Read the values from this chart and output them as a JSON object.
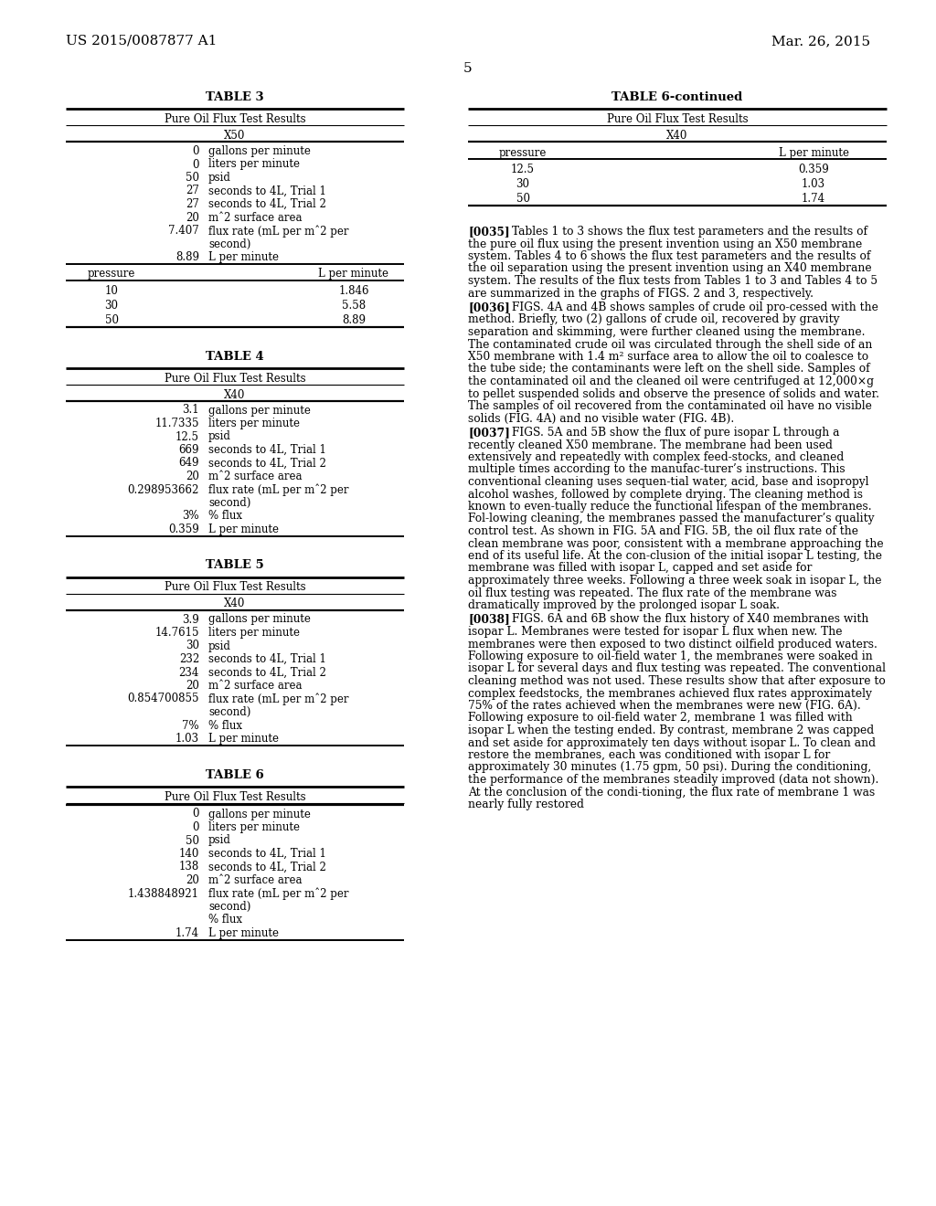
{
  "background_color": "#ffffff",
  "page_number": "5",
  "header_left": "US 2015/0087877 A1",
  "header_right": "Mar. 26, 2015",
  "left_tables": [
    {
      "title": "TABLE 3",
      "subtitle": "Pure Oil Flux Test Results",
      "subheading": "X50",
      "params": [
        {
          "num": "0",
          "txt": "gallons per minute"
        },
        {
          "num": "0",
          "txt": "liters per minute"
        },
        {
          "num": "50",
          "txt": "psid"
        },
        {
          "num": "27",
          "txt": "seconds to 4L, Trial 1"
        },
        {
          "num": "27",
          "txt": "seconds to 4L, Trial 2"
        },
        {
          "num": "20",
          "txt": "mˆ2 surface area"
        },
        {
          "num": "7.407",
          "txt": "flux rate (mL per mˆ2 per"
        },
        {
          "num": "",
          "txt": "second)"
        },
        {
          "num": "8.89",
          "txt": "L per minute"
        }
      ],
      "has_pressure": true,
      "pressure_header": [
        "pressure",
        "L per minute"
      ],
      "pressure_rows": [
        [
          "10",
          "1.846"
        ],
        [
          "30",
          "5.58"
        ],
        [
          "50",
          "8.89"
        ]
      ]
    },
    {
      "title": "TABLE 4",
      "subtitle": "Pure Oil Flux Test Results",
      "subheading": "X40",
      "params": [
        {
          "num": "3.1",
          "txt": "gallons per minute"
        },
        {
          "num": "11.7335",
          "txt": "liters per minute"
        },
        {
          "num": "12.5",
          "txt": "psid"
        },
        {
          "num": "669",
          "txt": "seconds to 4L, Trial 1"
        },
        {
          "num": "649",
          "txt": "seconds to 4L, Trial 2"
        },
        {
          "num": "20",
          "txt": "mˆ2 surface area"
        },
        {
          "num": "0.298953662",
          "txt": "flux rate (mL per mˆ2 per"
        },
        {
          "num": "",
          "txt": "second)"
        },
        {
          "num": "3%",
          "txt": "% flux"
        },
        {
          "num": "0.359",
          "txt": "L per minute"
        }
      ],
      "has_pressure": false
    },
    {
      "title": "TABLE 5",
      "subtitle": "Pure Oil Flux Test Results",
      "subheading": "X40",
      "params": [
        {
          "num": "3.9",
          "txt": "gallons per minute"
        },
        {
          "num": "14.7615",
          "txt": "liters per minute"
        },
        {
          "num": "30",
          "txt": "psid"
        },
        {
          "num": "232",
          "txt": "seconds to 4L, Trial 1"
        },
        {
          "num": "234",
          "txt": "seconds to 4L, Trial 2"
        },
        {
          "num": "20",
          "txt": "mˆ2 surface area"
        },
        {
          "num": "0.854700855",
          "txt": "flux rate (mL per mˆ2 per"
        },
        {
          "num": "",
          "txt": "second)"
        },
        {
          "num": "7%",
          "txt": "% flux"
        },
        {
          "num": "1.03",
          "txt": "L per minute"
        }
      ],
      "has_pressure": false
    },
    {
      "title": "TABLE 6",
      "subtitle": "Pure Oil Flux Test Results",
      "subheading": "",
      "params": [
        {
          "num": "0",
          "txt": "gallons per minute"
        },
        {
          "num": "0",
          "txt": "liters per minute"
        },
        {
          "num": "50",
          "txt": "psid"
        },
        {
          "num": "140",
          "txt": "seconds to 4L, Trial 1"
        },
        {
          "num": "138",
          "txt": "seconds to 4L, Trial 2"
        },
        {
          "num": "20",
          "txt": "mˆ2 surface area"
        },
        {
          "num": "1.438848921",
          "txt": "flux rate (mL per mˆ2 per"
        },
        {
          "num": "",
          "txt": "second)"
        },
        {
          "num": "",
          "txt": "% flux"
        },
        {
          "num": "1.74",
          "txt": "L per minute"
        }
      ],
      "has_pressure": false
    }
  ],
  "right_table_continued": {
    "title": "TABLE 6-continued",
    "subtitle": "Pure Oil Flux Test Results",
    "subheading": "X40",
    "pressure_header": [
      "pressure",
      "L per minute"
    ],
    "pressure_rows": [
      [
        "12.5",
        "0.359"
      ],
      [
        "30",
        "1.03"
      ],
      [
        "50",
        "1.74"
      ]
    ]
  },
  "paragraphs": [
    {
      "tag": "[0035]",
      "text": "Tables 1 to 3 shows the flux test parameters and the results of the pure oil flux using the present invention using an X50 membrane system. Tables 4 to 6 shows the flux test parameters and the results of the oil separation using the present invention using an X40 membrane system. The results of the flux tests from Tables 1 to 3 and Tables 4 to 5 are summarized in the graphs of FIGS. 2 and 3, respectively."
    },
    {
      "tag": "[0036]",
      "text": "FIGS. 4A and 4B shows samples of crude oil pro-cessed with the method. Briefly, two (2) gallons of crude oil, recovered by gravity separation and skimming, were further cleaned using the membrane. The contaminated crude oil was circulated through the shell side of an X50 membrane with 1.4 m² surface area to allow the oil to coalesce to the tube side; the contaminants were left on the shell side. Samples of the contaminated oil and the cleaned oil were centrifuged at 12,000×g to pellet suspended solids and observe the presence of solids and water. The samples of oil recovered from the contaminated oil have no visible solids (FIG. 4A) and no visible water (FIG. 4B)."
    },
    {
      "tag": "[0037]",
      "text": "FIGS. 5A and 5B show the flux of pure isopar L through a recently cleaned X50 membrane. The membrane had been used extensively and repeatedly with complex feed-stocks, and cleaned multiple times according to the manufac-turer’s instructions. This conventional cleaning uses sequen-tial water, acid, base and isopropyl alcohol washes, followed by complete drying. The cleaning method is known to even-tually reduce the functional lifespan of the membranes. Fol-lowing cleaning, the membranes passed the manufacturer’s quality control test. As shown in FIG. 5A and FIG. 5B, the oil flux rate of the clean membrane was poor, consistent with a membrane approaching the end of its useful life. At the con-clusion of the initial isopar L testing, the membrane was filled with isopar L, capped and set aside for approximately three weeks. Following a three week soak in isopar L, the oil flux testing was repeated. The flux rate of the membrane was dramatically improved by the prolonged isopar L soak."
    },
    {
      "tag": "[0038]",
      "text": "FIGS. 6A and 6B show the flux history of X40 membranes with isopar L. Membranes were tested for isopar L flux when new. The membranes were then exposed to two distinct oilfield produced waters. Following exposure to oil-field water 1, the membranes were soaked in isopar L for several days and flux testing was repeated. The conventional cleaning method was not used. These results show that after exposure to complex feedstocks, the membranes achieved flux rates approximately 75% of the rates achieved when the membranes were new (FIG. 6A). Following exposure to oil-field water 2, membrane 1 was filled with isopar L when the testing ended. By contrast, membrane 2 was capped and set aside for approximately ten days without isopar L. To clean and restore the membranes, each was conditioned with isopar L for approximately 30 minutes (1.75 gpm, 50 psi). During the conditioning, the performance of the membranes steadily improved (data not shown). At the conclusion of the condi-tioning, the flux rate of membrane 1 was nearly fully restored"
    }
  ]
}
